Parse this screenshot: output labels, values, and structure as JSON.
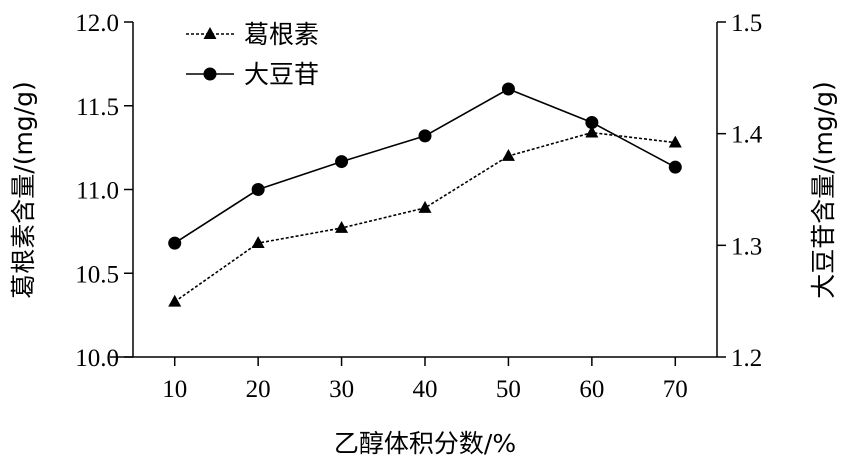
{
  "chart_data": {
    "type": "line",
    "x": [
      10,
      20,
      30,
      40,
      50,
      60,
      70
    ],
    "xlabel": "乙醇体积分数/%",
    "ylabel_left": "葛根素含量/(mg/g)",
    "ylabel_right": "大豆苷含量/(mg/g)",
    "xlim": [
      5,
      75
    ],
    "ylim_left": [
      10.0,
      12.0
    ],
    "ylim_right": [
      1.2,
      1.5
    ],
    "x_ticks": [
      "10",
      "20",
      "30",
      "40",
      "50",
      "60",
      "70"
    ],
    "y_ticks_left": [
      "10.0",
      "10.5",
      "11.0",
      "11.5",
      "12.0"
    ],
    "y_ticks_right": [
      "1.2",
      "1.3",
      "1.4",
      "1.5"
    ],
    "legend_position": "top-left",
    "grid": false,
    "series": [
      {
        "name": "葛根素",
        "axis": "left",
        "marker": "triangle",
        "line_style": "dashed",
        "color": "#000000",
        "values": [
          10.33,
          10.68,
          10.77,
          10.89,
          11.2,
          11.34,
          11.28
        ]
      },
      {
        "name": "大豆苷",
        "axis": "right",
        "marker": "circle",
        "line_style": "solid",
        "color": "#000000",
        "values": [
          1.302,
          1.35,
          1.375,
          1.398,
          1.44,
          1.41,
          1.37
        ]
      }
    ]
  }
}
